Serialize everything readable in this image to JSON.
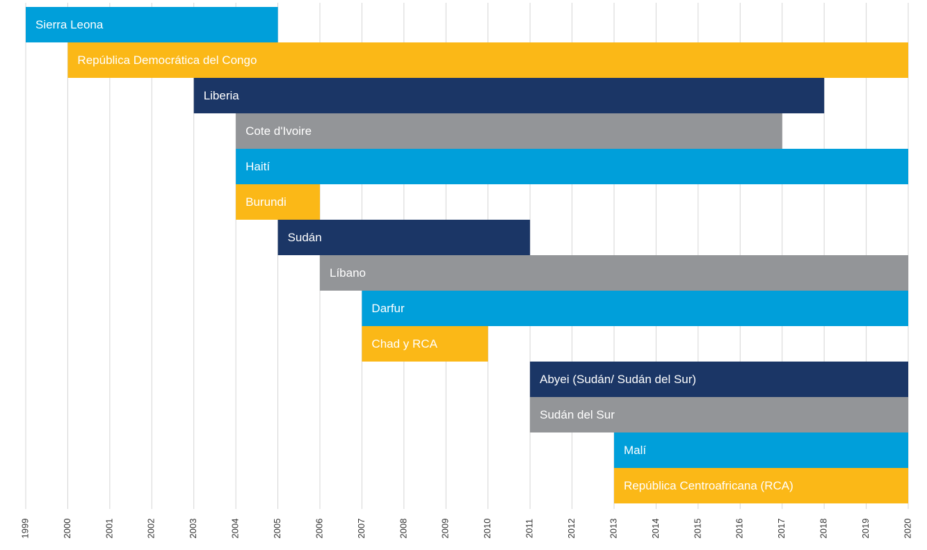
{
  "chart_data": {
    "type": "gantt",
    "bars": [
      {
        "name": "Sierra Leona",
        "start": 1999,
        "end": 2005,
        "color": "#009fda"
      },
      {
        "name": "República Democrática del Congo",
        "start": 2000,
        "end": 2020,
        "color": "#fbb817"
      },
      {
        "name": "Liberia",
        "start": 2003,
        "end": 2018,
        "color": "#1b3666"
      },
      {
        "name": "Cote d'Ivoire",
        "start": 2004,
        "end": 2017,
        "color": "#939598"
      },
      {
        "name": "Haití",
        "start": 2004,
        "end": 2020,
        "color": "#009fda"
      },
      {
        "name": "Burundi",
        "start": 2004,
        "end": 2006,
        "color": "#fbb817"
      },
      {
        "name": "Sudán",
        "start": 2005,
        "end": 2011,
        "color": "#1b3666"
      },
      {
        "name": "Líbano",
        "start": 2006,
        "end": 2020,
        "color": "#939598"
      },
      {
        "name": "Darfur",
        "start": 2007,
        "end": 2020,
        "color": "#009fda"
      },
      {
        "name": "Chad y RCA",
        "start": 2007,
        "end": 2010,
        "color": "#fbb817"
      },
      {
        "name": "Abyei (Sudán/ Sudán del Sur)",
        "start": 2011,
        "end": 2020,
        "color": "#1b3666"
      },
      {
        "name": "Sudán del Sur",
        "start": 2011,
        "end": 2020,
        "color": "#939598"
      },
      {
        "name": "Malí",
        "start": 2013,
        "end": 2020,
        "color": "#009fda"
      },
      {
        "name": "República Centroafricana (RCA)",
        "start": 2013,
        "end": 2020,
        "color": "#fbb817"
      }
    ],
    "xlim": [
      1999,
      2020
    ],
    "xticks": [
      1999,
      2000,
      2001,
      2002,
      2003,
      2004,
      2005,
      2006,
      2007,
      2008,
      2009,
      2010,
      2011,
      2012,
      2013,
      2014,
      2015,
      2016,
      2017,
      2018,
      2019,
      2020
    ],
    "grid": true
  }
}
